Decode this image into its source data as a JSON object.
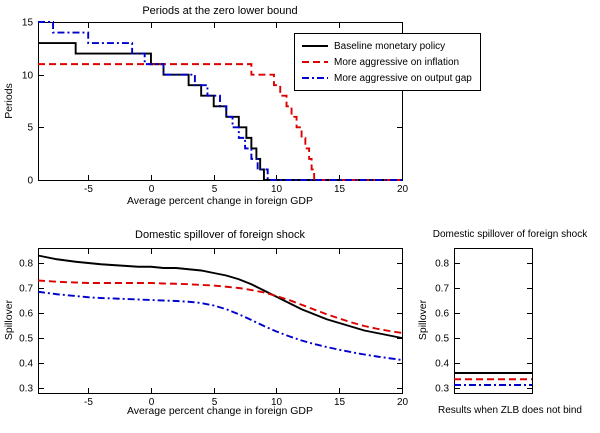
{
  "figure": {
    "background": "#ffffff"
  },
  "legend": {
    "items": [
      {
        "label": "Baseline monetary policy",
        "color": "#000000",
        "dasharray": "none"
      },
      {
        "label": "More aggressive on inflation",
        "color": "#dd0000",
        "dasharray": "7,4"
      },
      {
        "label": "More aggressive on output gap",
        "color": "#0000cc",
        "dasharray": "7,3,2,3"
      }
    ]
  },
  "chart_data": [
    {
      "id": "zlb-canvas",
      "type": "line",
      "subtype": "step",
      "title": "Periods at the zero lower bound",
      "xlabel": "Average percent change in foreign GDP",
      "ylabel": "Periods",
      "xlim": [
        -9,
        20
      ],
      "ylim": [
        0,
        15
      ],
      "xticks": [
        -5,
        0,
        5,
        10,
        15,
        20
      ],
      "yticks": [
        0,
        5,
        10,
        15
      ],
      "grid": false,
      "legend_position": "top-right",
      "series": [
        {
          "name": "Baseline monetary policy",
          "color": "#000000",
          "dash": [],
          "x": [
            -9,
            -6,
            -6,
            0,
            0,
            1,
            1,
            3,
            3,
            4,
            4,
            5,
            5,
            6,
            6,
            7,
            7,
            7.6,
            7.6,
            8,
            8,
            8.4,
            8.4,
            8.7,
            8.7,
            9,
            9,
            20
          ],
          "y": [
            13,
            13,
            12,
            12,
            11,
            11,
            10,
            10,
            9,
            9,
            8,
            8,
            7,
            7,
            6,
            6,
            5,
            5,
            4,
            4,
            3,
            3,
            2,
            2,
            1,
            1,
            0,
            0
          ]
        },
        {
          "name": "More aggressive on inflation",
          "color": "#dd0000",
          "dash": [
            7,
            4
          ],
          "x": [
            -9,
            8,
            8,
            9.8,
            9.8,
            10.3,
            10.3,
            10.8,
            10.8,
            11.2,
            11.2,
            11.6,
            11.6,
            12,
            12,
            12.3,
            12.3,
            12.6,
            12.6,
            12.8,
            12.8,
            13,
            13,
            20
          ],
          "y": [
            11,
            11,
            10,
            10,
            9,
            9,
            8,
            8,
            7,
            7,
            6,
            6,
            5,
            5,
            4,
            4,
            3,
            3,
            2,
            2,
            1,
            1,
            0,
            0
          ]
        },
        {
          "name": "More aggressive on output gap",
          "color": "#0000cc",
          "dash": [
            7,
            3,
            2,
            3
          ],
          "x": [
            -9,
            -7.8,
            -7.8,
            -5,
            -5,
            -1.5,
            -1.5,
            -0.5,
            -0.5,
            1,
            1,
            3.5,
            3.5,
            4.5,
            4.5,
            5.5,
            5.5,
            6,
            6,
            6.5,
            6.5,
            7,
            7,
            7.5,
            7.5,
            8,
            8,
            8.5,
            8.5,
            9.3,
            9.3,
            20
          ],
          "y": [
            15,
            15,
            14,
            14,
            13,
            13,
            12,
            12,
            11,
            11,
            10,
            10,
            9,
            9,
            8,
            8,
            7,
            7,
            6,
            6,
            5,
            5,
            4,
            4,
            3,
            3,
            2,
            2,
            1,
            1,
            0,
            0
          ]
        }
      ]
    },
    {
      "id": "spill-canvas",
      "type": "line",
      "title": "Domestic spillover of foreign shock",
      "xlabel": "Average percent change in foreign GDP",
      "ylabel": "Spillover",
      "xlim": [
        -9,
        20
      ],
      "ylim": [
        0.28,
        0.86
      ],
      "xticks": [
        -5,
        0,
        5,
        10,
        15,
        20
      ],
      "yticks": [
        0.3,
        0.4,
        0.5,
        0.6,
        0.7,
        0.8
      ],
      "grid": false,
      "series": [
        {
          "name": "Baseline monetary policy",
          "color": "#000000",
          "dash": [],
          "x": [
            -9,
            -7.5,
            -6,
            -5,
            -4,
            -2.5,
            -1,
            0,
            1,
            2,
            3,
            4,
            5,
            6,
            7,
            8,
            9,
            10,
            11,
            12,
            13,
            14,
            15,
            16,
            17,
            18,
            19,
            20
          ],
          "y": [
            0.83,
            0.815,
            0.805,
            0.8,
            0.795,
            0.79,
            0.785,
            0.785,
            0.78,
            0.78,
            0.775,
            0.77,
            0.76,
            0.75,
            0.735,
            0.715,
            0.69,
            0.665,
            0.64,
            0.615,
            0.595,
            0.575,
            0.56,
            0.545,
            0.53,
            0.52,
            0.51,
            0.5
          ]
        },
        {
          "name": "More aggressive on inflation",
          "color": "#dd0000",
          "dash": [
            7,
            4
          ],
          "x": [
            -9,
            -7.5,
            -6,
            -5,
            -4,
            -2.5,
            -1,
            0,
            1,
            2,
            3,
            4,
            5,
            6,
            7,
            8,
            9,
            10,
            11,
            12,
            13,
            14,
            15,
            16,
            17,
            18,
            19,
            20
          ],
          "y": [
            0.73,
            0.725,
            0.722,
            0.72,
            0.72,
            0.72,
            0.72,
            0.72,
            0.718,
            0.717,
            0.715,
            0.712,
            0.71,
            0.705,
            0.7,
            0.692,
            0.682,
            0.668,
            0.652,
            0.633,
            0.614,
            0.595,
            0.578,
            0.562,
            0.548,
            0.537,
            0.528,
            0.52
          ]
        },
        {
          "name": "More aggressive on output gap",
          "color": "#0000cc",
          "dash": [
            7,
            3,
            2,
            3
          ],
          "x": [
            -9,
            -7.5,
            -6,
            -5,
            -4,
            -2.5,
            -1,
            0,
            1,
            2,
            3,
            4,
            5,
            6,
            7,
            8,
            9,
            10,
            11,
            12,
            13,
            14,
            15,
            16,
            17,
            18,
            19,
            20
          ],
          "y": [
            0.685,
            0.675,
            0.668,
            0.663,
            0.66,
            0.657,
            0.654,
            0.652,
            0.65,
            0.648,
            0.645,
            0.64,
            0.63,
            0.615,
            0.595,
            0.572,
            0.548,
            0.526,
            0.507,
            0.49,
            0.476,
            0.464,
            0.453,
            0.443,
            0.434,
            0.426,
            0.419,
            0.412
          ]
        }
      ]
    },
    {
      "id": "nozlb-canvas",
      "type": "line",
      "title": "Domestic spillover of foreign shock",
      "xlabel": "Results when ZLB does not bind",
      "ylabel": "Spillover",
      "xlim": [
        0,
        1
      ],
      "ylim": [
        0.28,
        0.86
      ],
      "xticks": [],
      "yticks": [
        0.3,
        0.4,
        0.5,
        0.6,
        0.7,
        0.8
      ],
      "grid": false,
      "series": [
        {
          "name": "Baseline monetary policy",
          "color": "#000000",
          "dash": [],
          "x": [
            0,
            1
          ],
          "y": [
            0.36,
            0.36
          ]
        },
        {
          "name": "More aggressive on inflation",
          "color": "#dd0000",
          "dash": [
            7,
            4
          ],
          "x": [
            0,
            1
          ],
          "y": [
            0.335,
            0.335
          ]
        },
        {
          "name": "More aggressive on output gap",
          "color": "#0000cc",
          "dash": [
            7,
            3,
            2,
            3
          ],
          "x": [
            0,
            1
          ],
          "y": [
            0.312,
            0.312
          ]
        }
      ]
    }
  ]
}
